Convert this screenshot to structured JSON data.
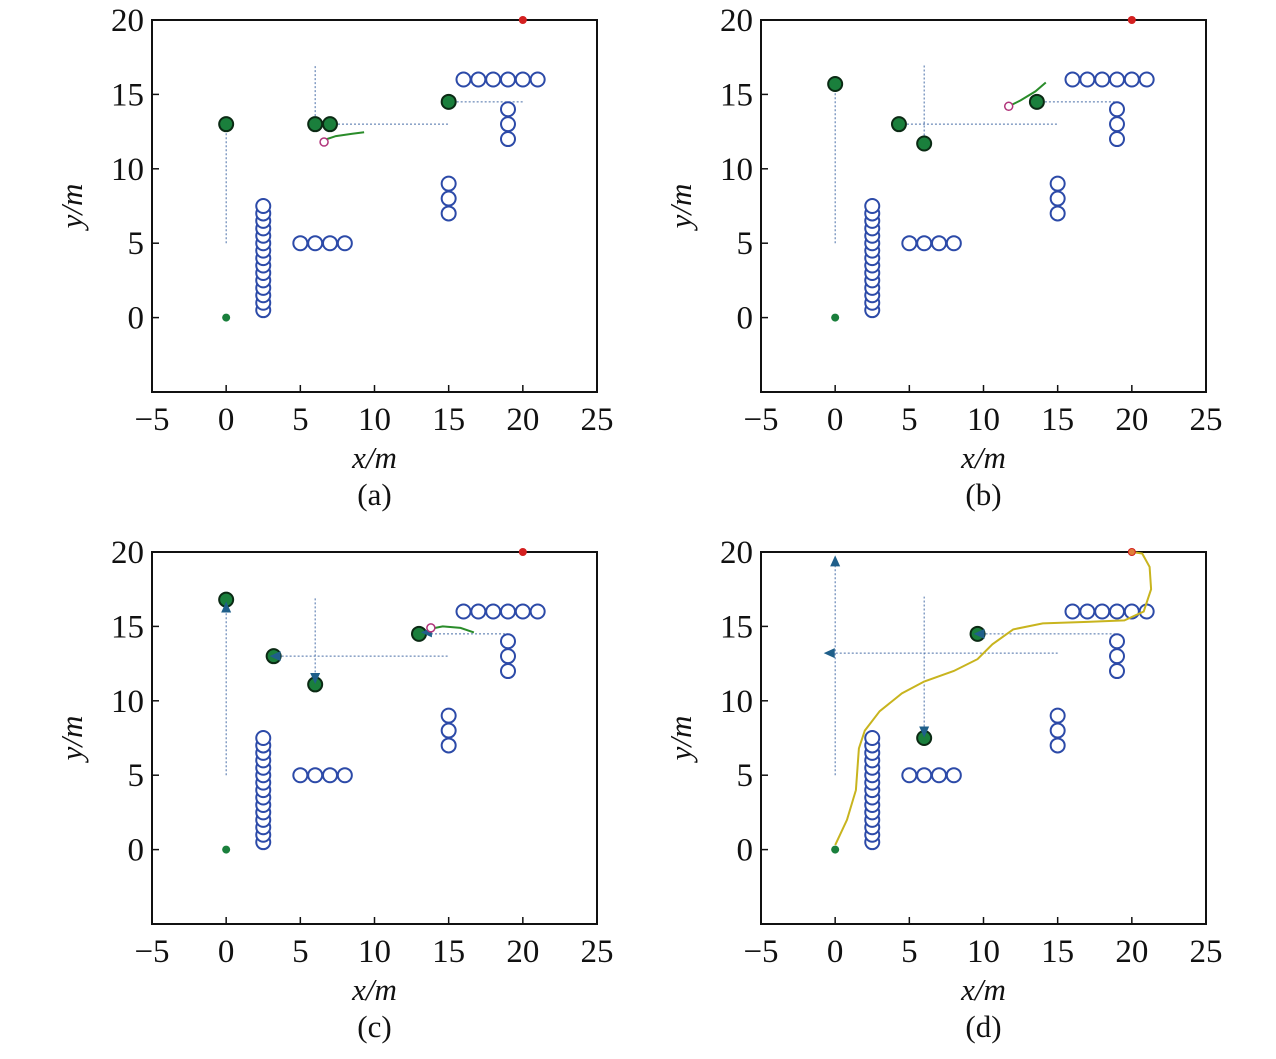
{
  "chart_data": [
    {
      "type": "scatter",
      "caption": "(a)",
      "xlabel": "x/m",
      "ylabel": "y/m",
      "xlim": [
        -5,
        25
      ],
      "ylim": [
        -5,
        20
      ],
      "xticks": [
        -5,
        0,
        5,
        10,
        15,
        20,
        25
      ],
      "yticks": [
        0,
        5,
        10,
        15,
        20
      ],
      "start": [
        0,
        0
      ],
      "goal": [
        20,
        20
      ],
      "static_obstacles": [
        [
          2.5,
          0.5
        ],
        [
          2.5,
          1.0
        ],
        [
          2.5,
          1.5
        ],
        [
          2.5,
          2.0
        ],
        [
          2.5,
          2.5
        ],
        [
          2.5,
          3.0
        ],
        [
          2.5,
          3.5
        ],
        [
          2.5,
          4.0
        ],
        [
          2.5,
          4.5
        ],
        [
          2.5,
          5.0
        ],
        [
          2.5,
          5.5
        ],
        [
          2.5,
          6.0
        ],
        [
          2.5,
          6.5
        ],
        [
          2.5,
          7.0
        ],
        [
          2.5,
          7.5
        ],
        [
          5,
          5
        ],
        [
          6,
          5
        ],
        [
          7,
          5
        ],
        [
          8,
          5
        ],
        [
          15,
          7
        ],
        [
          15,
          8
        ],
        [
          15,
          9
        ],
        [
          16,
          16
        ],
        [
          17,
          16
        ],
        [
          18,
          16
        ],
        [
          19,
          16
        ],
        [
          20,
          16
        ],
        [
          21,
          16
        ],
        [
          19,
          12
        ],
        [
          19,
          13
        ],
        [
          19,
          14
        ]
      ],
      "moving_obstacles": [
        [
          0,
          13
        ],
        [
          6,
          13
        ],
        [
          7,
          13
        ],
        [
          15,
          14.5
        ]
      ],
      "guide_lines": [
        [
          [
            0,
            5
          ],
          [
            0,
            13
          ]
        ],
        [
          [
            6,
            13
          ],
          [
            6,
            17
          ]
        ],
        [
          [
            7,
            13
          ],
          [
            15,
            13
          ]
        ],
        [
          [
            15,
            14.5
          ],
          [
            20,
            14.5
          ]
        ]
      ],
      "robot": [
        6.6,
        11.8
      ],
      "trajectories": [
        [
          [
            6.5,
            11.9
          ],
          [
            7.4,
            12.2
          ],
          [
            8.5,
            12.35
          ],
          [
            9.3,
            12.45
          ]
        ]
      ],
      "arrows": []
    },
    {
      "type": "scatter",
      "caption": "(b)",
      "xlabel": "x/m",
      "ylabel": "y/m",
      "xlim": [
        -5,
        25
      ],
      "ylim": [
        -5,
        20
      ],
      "xticks": [
        -5,
        0,
        5,
        10,
        15,
        20,
        25
      ],
      "yticks": [
        0,
        5,
        10,
        15,
        20
      ],
      "start": [
        0,
        0
      ],
      "goal": [
        20,
        20
      ],
      "static_obstacles": [
        [
          2.5,
          0.5
        ],
        [
          2.5,
          1.0
        ],
        [
          2.5,
          1.5
        ],
        [
          2.5,
          2.0
        ],
        [
          2.5,
          2.5
        ],
        [
          2.5,
          3.0
        ],
        [
          2.5,
          3.5
        ],
        [
          2.5,
          4.0
        ],
        [
          2.5,
          4.5
        ],
        [
          2.5,
          5.0
        ],
        [
          2.5,
          5.5
        ],
        [
          2.5,
          6.0
        ],
        [
          2.5,
          6.5
        ],
        [
          2.5,
          7.0
        ],
        [
          2.5,
          7.5
        ],
        [
          5,
          5
        ],
        [
          6,
          5
        ],
        [
          7,
          5
        ],
        [
          8,
          5
        ],
        [
          15,
          7
        ],
        [
          15,
          8
        ],
        [
          15,
          9
        ],
        [
          16,
          16
        ],
        [
          17,
          16
        ],
        [
          18,
          16
        ],
        [
          19,
          16
        ],
        [
          20,
          16
        ],
        [
          21,
          16
        ],
        [
          19,
          12
        ],
        [
          19,
          13
        ],
        [
          19,
          14
        ]
      ],
      "moving_obstacles": [
        [
          0,
          15.7
        ],
        [
          4.3,
          13
        ],
        [
          6,
          11.7
        ],
        [
          13.6,
          14.5
        ]
      ],
      "guide_lines": [
        [
          [
            0,
            5
          ],
          [
            0,
            15.7
          ]
        ],
        [
          [
            6,
            11.7
          ],
          [
            6,
            17
          ]
        ],
        [
          [
            4.3,
            13
          ],
          [
            15,
            13
          ]
        ],
        [
          [
            13.6,
            14.5
          ],
          [
            19,
            14.5
          ]
        ]
      ],
      "robot": [
        11.7,
        14.2
      ],
      "trajectories": [
        [
          [
            11.7,
            14.2
          ],
          [
            12.5,
            14.6
          ],
          [
            13.5,
            15.2
          ],
          [
            14.2,
            15.8
          ]
        ]
      ],
      "arrows": []
    },
    {
      "type": "scatter",
      "caption": "(c)",
      "xlabel": "x/m",
      "ylabel": "y/m",
      "xlim": [
        -5,
        25
      ],
      "ylim": [
        -5,
        20
      ],
      "xticks": [
        -5,
        0,
        5,
        10,
        15,
        20,
        25
      ],
      "yticks": [
        0,
        5,
        10,
        15,
        20
      ],
      "start": [
        0,
        0
      ],
      "goal": [
        20,
        20
      ],
      "static_obstacles": [
        [
          2.5,
          0.5
        ],
        [
          2.5,
          1.0
        ],
        [
          2.5,
          1.5
        ],
        [
          2.5,
          2.0
        ],
        [
          2.5,
          2.5
        ],
        [
          2.5,
          3.0
        ],
        [
          2.5,
          3.5
        ],
        [
          2.5,
          4.0
        ],
        [
          2.5,
          4.5
        ],
        [
          2.5,
          5.0
        ],
        [
          2.5,
          5.5
        ],
        [
          2.5,
          6.0
        ],
        [
          2.5,
          6.5
        ],
        [
          2.5,
          7.0
        ],
        [
          2.5,
          7.5
        ],
        [
          5,
          5
        ],
        [
          6,
          5
        ],
        [
          7,
          5
        ],
        [
          8,
          5
        ],
        [
          15,
          7
        ],
        [
          15,
          8
        ],
        [
          15,
          9
        ],
        [
          16,
          16
        ],
        [
          17,
          16
        ],
        [
          18,
          16
        ],
        [
          19,
          16
        ],
        [
          20,
          16
        ],
        [
          21,
          16
        ],
        [
          19,
          12
        ],
        [
          19,
          13
        ],
        [
          19,
          14
        ]
      ],
      "moving_obstacles": [
        [
          0,
          16.8
        ],
        [
          3.2,
          13
        ],
        [
          6,
          11.1
        ],
        [
          13,
          14.5
        ]
      ],
      "guide_lines": [
        [
          [
            0,
            5
          ],
          [
            0,
            16.8
          ]
        ],
        [
          [
            6,
            11.1
          ],
          [
            6,
            17
          ]
        ],
        [
          [
            3.2,
            13
          ],
          [
            15,
            13
          ]
        ],
        [
          [
            13,
            14.5
          ],
          [
            19,
            14.5
          ]
        ]
      ],
      "robot": [
        13.8,
        14.9
      ],
      "trajectories": [
        [
          [
            13.6,
            14.8
          ],
          [
            14.6,
            15.0
          ],
          [
            15.8,
            14.9
          ],
          [
            16.7,
            14.6
          ]
        ]
      ],
      "arrows": [
        [
          0,
          16.2,
          "up"
        ],
        [
          3.4,
          13,
          "left"
        ],
        [
          6,
          11.6,
          "down"
        ],
        [
          13.6,
          14.6,
          "left"
        ]
      ]
    },
    {
      "type": "scatter",
      "caption": "(d)",
      "xlabel": "x/m",
      "ylabel": "y/m",
      "xlim": [
        -5,
        25
      ],
      "ylim": [
        -5,
        20
      ],
      "xticks": [
        -5,
        0,
        5,
        10,
        15,
        20,
        25
      ],
      "yticks": [
        0,
        5,
        10,
        15,
        20
      ],
      "start": [
        0,
        0
      ],
      "goal": [
        20,
        20
      ],
      "static_obstacles": [
        [
          2.5,
          0.5
        ],
        [
          2.5,
          1.0
        ],
        [
          2.5,
          1.5
        ],
        [
          2.5,
          2.0
        ],
        [
          2.5,
          2.5
        ],
        [
          2.5,
          3.0
        ],
        [
          2.5,
          3.5
        ],
        [
          2.5,
          4.0
        ],
        [
          2.5,
          4.5
        ],
        [
          2.5,
          5.0
        ],
        [
          2.5,
          5.5
        ],
        [
          2.5,
          6.0
        ],
        [
          2.5,
          6.5
        ],
        [
          2.5,
          7.0
        ],
        [
          2.5,
          7.5
        ],
        [
          5,
          5
        ],
        [
          6,
          5
        ],
        [
          7,
          5
        ],
        [
          8,
          5
        ],
        [
          15,
          7
        ],
        [
          15,
          8
        ],
        [
          15,
          9
        ],
        [
          16,
          16
        ],
        [
          17,
          16
        ],
        [
          18,
          16
        ],
        [
          19,
          16
        ],
        [
          20,
          16
        ],
        [
          21,
          16
        ],
        [
          19,
          12
        ],
        [
          19,
          13
        ],
        [
          19,
          14
        ]
      ],
      "moving_obstacles": [
        [
          9.6,
          14.5
        ],
        [
          6,
          7.5
        ]
      ],
      "guide_lines": [
        [
          [
            0,
            5
          ],
          [
            0,
            19.5
          ]
        ],
        [
          [
            -0.5,
            13.2
          ],
          [
            15,
            13.2
          ]
        ],
        [
          [
            6,
            8
          ],
          [
            6,
            17
          ]
        ],
        [
          [
            9.6,
            14.5
          ],
          [
            19,
            14.5
          ]
        ]
      ],
      "robot": [
        20,
        20
      ],
      "trajectories": [
        [
          [
            0,
            0.3
          ],
          [
            0.8,
            2.0
          ],
          [
            1.4,
            4.0
          ],
          [
            1.6,
            6.8
          ],
          [
            2.0,
            8.0
          ],
          [
            3.0,
            9.3
          ],
          [
            4.5,
            10.5
          ],
          [
            6.0,
            11.3
          ],
          [
            8.0,
            12.0
          ],
          [
            9.6,
            12.8
          ],
          [
            10.6,
            13.8
          ],
          [
            12.0,
            14.8
          ],
          [
            14.0,
            15.2
          ],
          [
            17.0,
            15.3
          ],
          [
            19.5,
            15.4
          ],
          [
            20.8,
            16.0
          ],
          [
            21.3,
            17.5
          ],
          [
            21.2,
            19.0
          ],
          [
            20.7,
            19.9
          ],
          [
            20.0,
            20.0
          ]
        ]
      ],
      "arrows": [
        [
          0,
          19.3,
          "up"
        ],
        [
          -0.3,
          13.2,
          "left"
        ],
        [
          6,
          8.0,
          "down"
        ],
        [
          9.8,
          14.5,
          "left"
        ]
      ]
    }
  ],
  "colors": {
    "obstacle": "#2c4aa8",
    "moving": "#1a7f3c",
    "goal": "#d42020",
    "trajectory_short": "#2a8c2a",
    "trajectory_final": "#c8b41e",
    "guide": "#4a6fa8",
    "arrow": "#1f5f8a",
    "robot": "#b0337a"
  }
}
